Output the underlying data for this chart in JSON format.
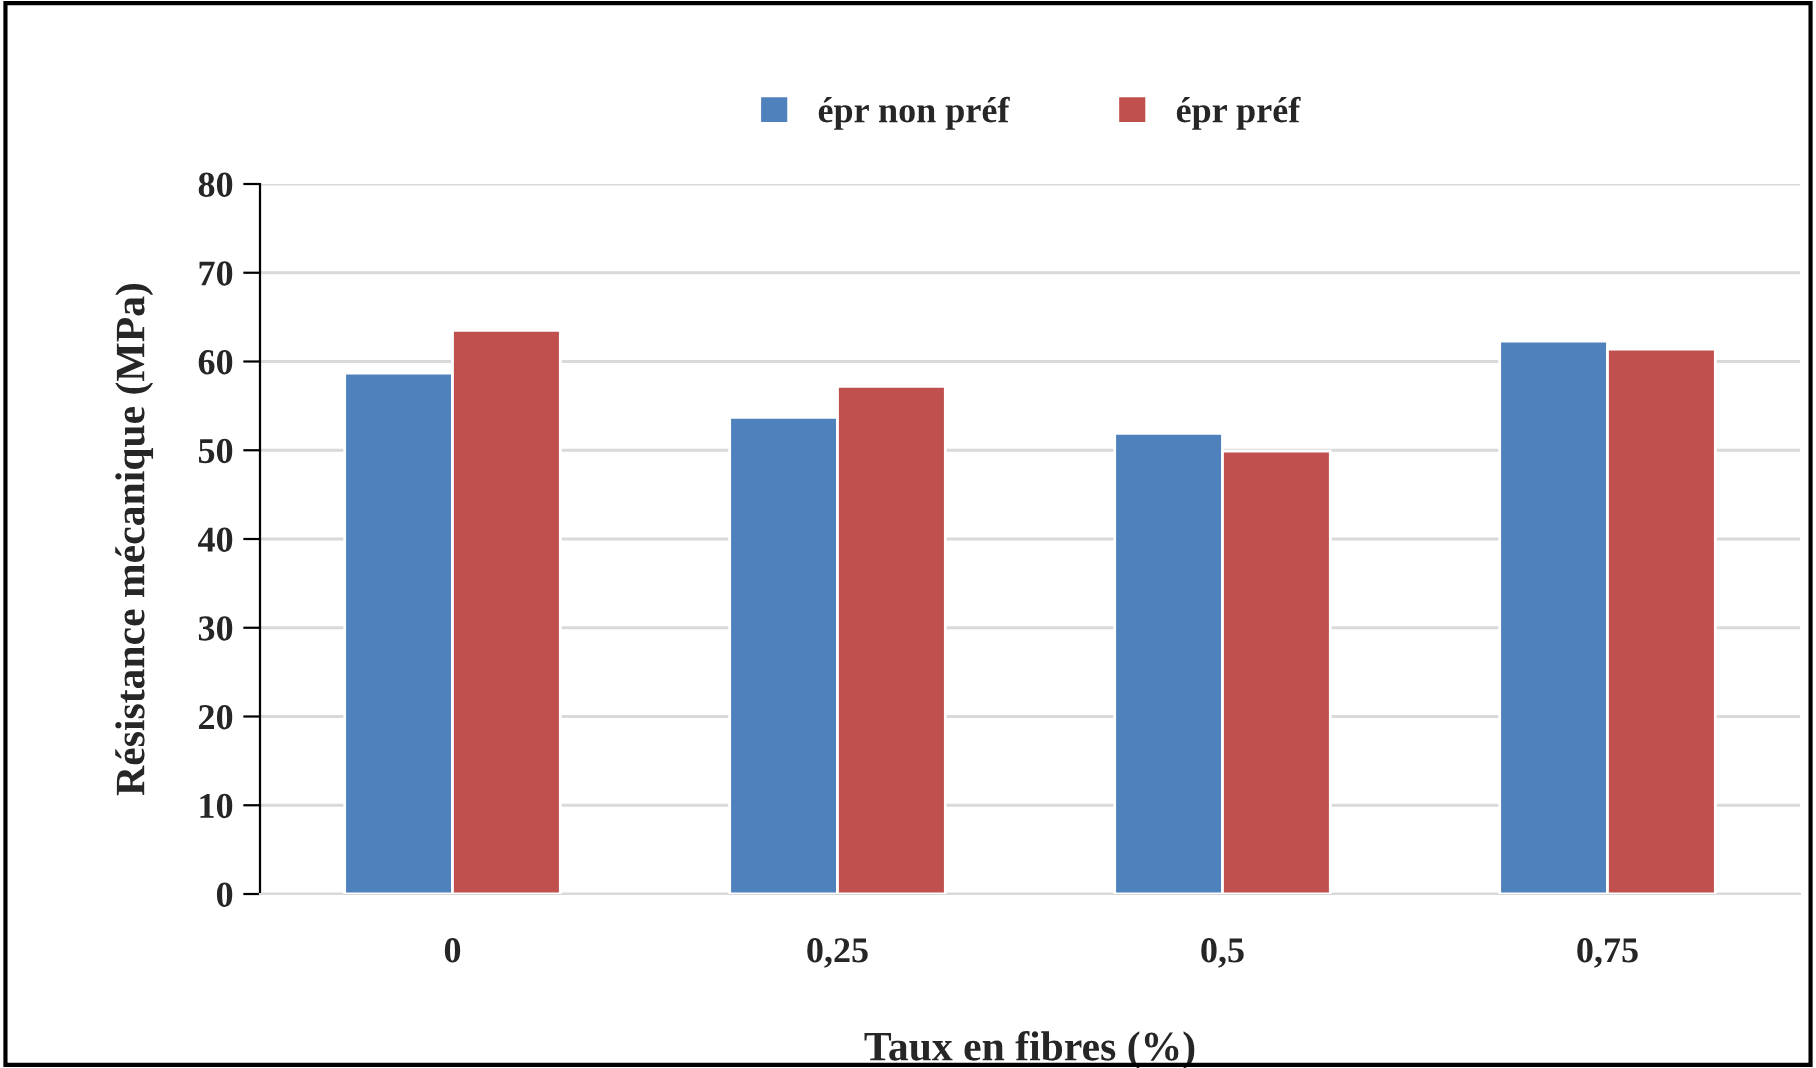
{
  "chart_data": {
    "type": "bar",
    "xlabel": "Taux en fibres (%)",
    "ylabel": "Résistance mécanique (MPa)",
    "categories": [
      "0",
      "0,25",
      "0,5",
      "0,75"
    ],
    "series": [
      {
        "name": "épr non préf",
        "color": "#4f81bd",
        "values": [
          58.7,
          53.7,
          51.9,
          62.3
        ]
      },
      {
        "name": "épr préf",
        "color": "#c0504d",
        "values": [
          63.5,
          57.2,
          49.9,
          61.4
        ]
      }
    ],
    "ylim": [
      0,
      80
    ],
    "yticks": [
      0,
      10,
      20,
      30,
      40,
      50,
      60,
      70,
      80
    ],
    "grid": "y",
    "legend": "top"
  }
}
